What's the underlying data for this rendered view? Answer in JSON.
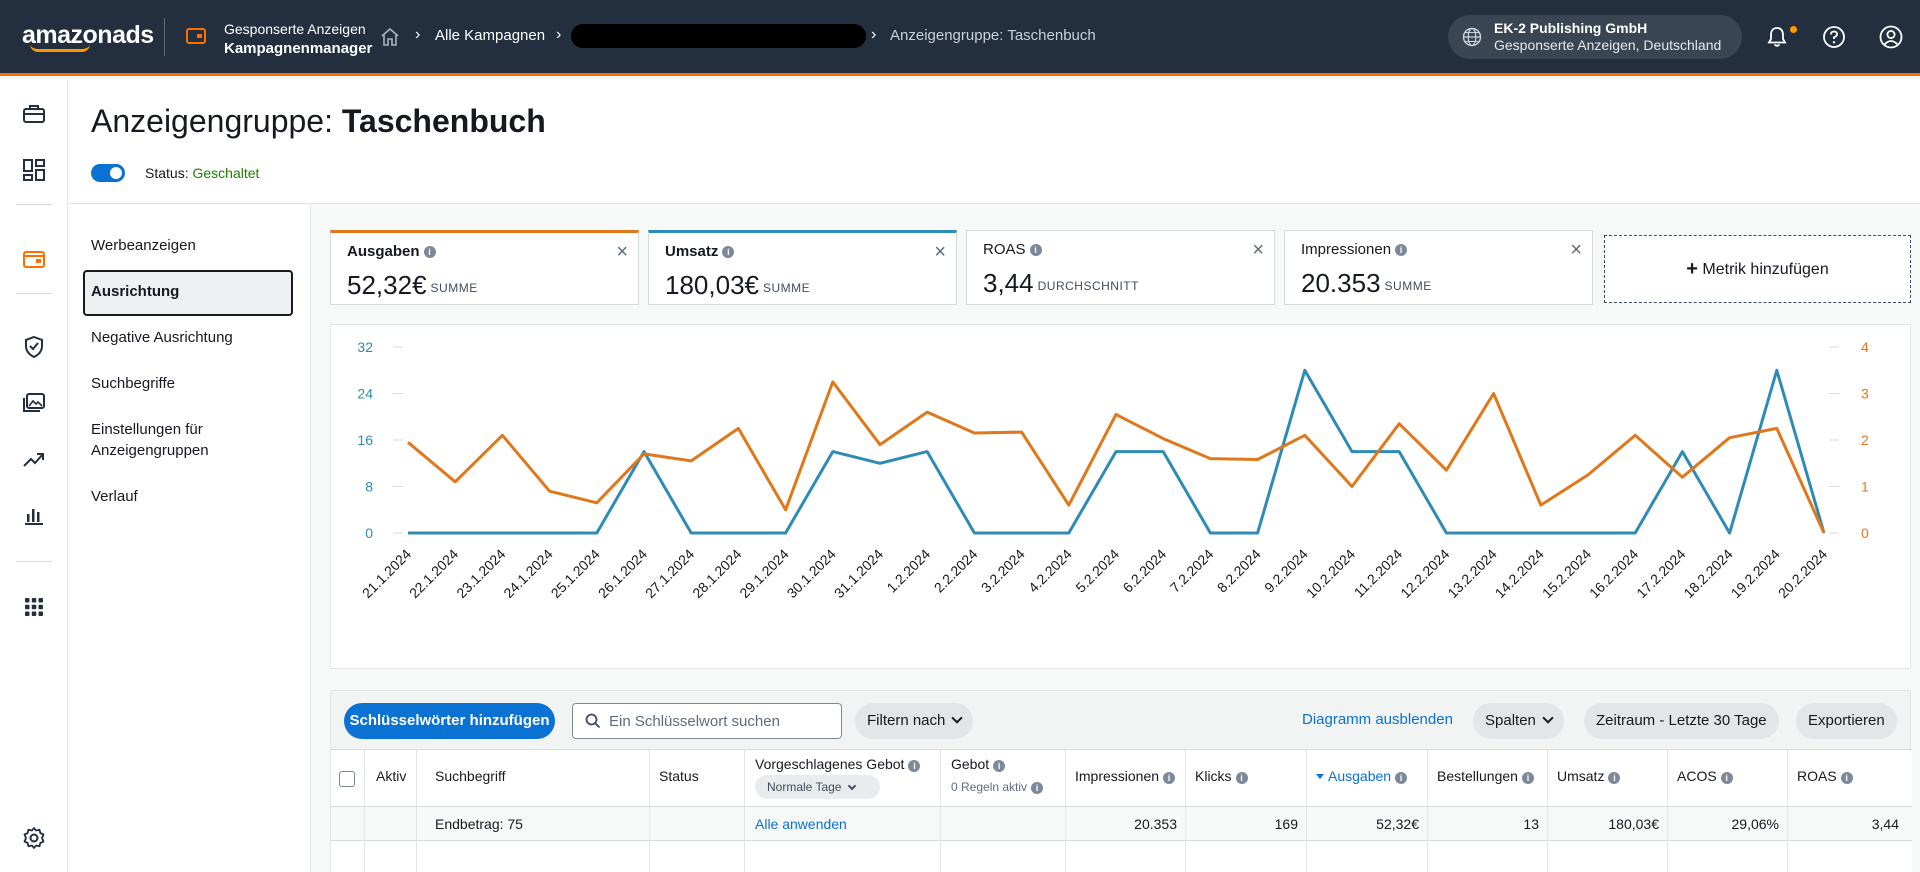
{
  "topbar": {
    "logo": "amazonads",
    "app_line1": "Gesponserte Anzeigen",
    "app_line2": "Kampagnenmanager",
    "crumb_campaigns": "Alle Kampagnen",
    "crumb_current": "Anzeigengruppe: Taschenbuch",
    "account_name": "EK-2 Publishing GmbH",
    "account_sub": "Gesponserte Anzeigen, Deutschland",
    "colors": {
      "bar": "#232f3e",
      "accent": "#ff6f00"
    }
  },
  "header": {
    "title_prefix": "Anzeigengruppe:",
    "title_name": "Taschenbuch",
    "status_label": "Status:",
    "status_value": "Geschaltet"
  },
  "section_nav": {
    "items": [
      {
        "label": "Werbeanzeigen"
      },
      {
        "label": "Ausrichtung",
        "active": true
      },
      {
        "label": "Negative Ausrichtung"
      },
      {
        "label": "Suchbegriffe"
      },
      {
        "label": "Einstellungen für Anzeigengruppen"
      },
      {
        "label": "Verlauf"
      }
    ]
  },
  "metrics": [
    {
      "title": "Ausgaben",
      "value": "52,32€",
      "unit": "SUMME",
      "color": "#e0781b"
    },
    {
      "title": "Umsatz",
      "value": "180,03€",
      "unit": "SUMME",
      "color": "#2e8bb5"
    },
    {
      "title": "ROAS",
      "value": "3,44",
      "unit": "DURCHSCHNITT"
    },
    {
      "title": "Impressionen",
      "value": "20.353",
      "unit": "SUMME"
    }
  ],
  "add_metric_label": "Metrik hinzufügen",
  "chart_data": {
    "type": "line",
    "x": [
      "21.1.2024",
      "22.1.2024",
      "23.1.2024",
      "24.1.2024",
      "25.1.2024",
      "26.1.2024",
      "27.1.2024",
      "28.1.2024",
      "29.1.2024",
      "30.1.2024",
      "31.1.2024",
      "1.2.2024",
      "2.2.2024",
      "3.2.2024",
      "4.2.2024",
      "5.2.2024",
      "6.2.2024",
      "7.2.2024",
      "8.2.2024",
      "9.2.2024",
      "10.2.2024",
      "11.2.2024",
      "12.2.2024",
      "13.2.2024",
      "14.2.2024",
      "15.2.2024",
      "16.2.2024",
      "17.2.2024",
      "18.2.2024",
      "19.2.2024",
      "20.2.2024"
    ],
    "left_axis": {
      "ticks": [
        "0",
        "8",
        "16",
        "24",
        "32"
      ],
      "ylim": [
        0,
        32
      ],
      "color": "#2e8bb5"
    },
    "right_axis": {
      "ticks": [
        "0",
        "1",
        "2",
        "3",
        "4"
      ],
      "ylim": [
        0,
        4
      ],
      "color": "#e0781b"
    },
    "series": [
      {
        "name": "Umsatz",
        "axis": "left",
        "color": "#2e8bb5",
        "values": [
          0,
          0,
          0,
          0,
          0,
          14,
          0,
          0,
          0,
          14,
          12,
          14,
          0,
          0,
          0,
          14,
          14,
          0,
          0,
          28,
          14,
          14,
          0,
          0,
          0,
          0,
          0,
          14,
          0,
          28,
          0
        ]
      },
      {
        "name": "Ausgaben",
        "axis": "right",
        "color": "#e0781b",
        "values": [
          1.95,
          1.1,
          2.1,
          0.9,
          0.65,
          1.7,
          1.55,
          2.25,
          0.5,
          3.25,
          1.9,
          2.6,
          2.15,
          2.17,
          0.6,
          2.55,
          2.03,
          1.6,
          1.58,
          2.1,
          1.0,
          2.35,
          1.35,
          3.0,
          0.6,
          1.25,
          2.1,
          1.2,
          2.05,
          2.25,
          0
        ]
      }
    ]
  },
  "toolbar": {
    "add_keywords": "Schlüsselwörter hinzufügen",
    "search_placeholder": "Ein Schlüsselwort suchen",
    "filter": "Filtern nach",
    "hide_chart": "Diagramm ausblenden",
    "columns": "Spalten",
    "date_range": "Zeitraum - Letzte 30 Tage",
    "export": "Exportieren"
  },
  "table": {
    "headers": {
      "active": "Aktiv",
      "term": "Suchbegriff",
      "status": "Status",
      "suggested_bid": "Vorgeschlagenes Gebot",
      "suggested_sub": "Normale Tage",
      "bid": "Gebot",
      "bid_sub": "0 Regeln aktiv",
      "impressions": "Impressionen",
      "clicks": "Klicks",
      "spend": "Ausgaben",
      "orders": "Bestellungen",
      "sales": "Umsatz",
      "acos": "ACOS",
      "roas": "ROAS"
    },
    "total_row": {
      "term": "Endbetrag: 75",
      "suggested": "Alle anwenden",
      "impressions": "20.353",
      "clicks": "169",
      "spend": "52,32€",
      "orders": "13",
      "sales": "180,03€",
      "acos": "29,06%",
      "roas": "3,44"
    }
  }
}
